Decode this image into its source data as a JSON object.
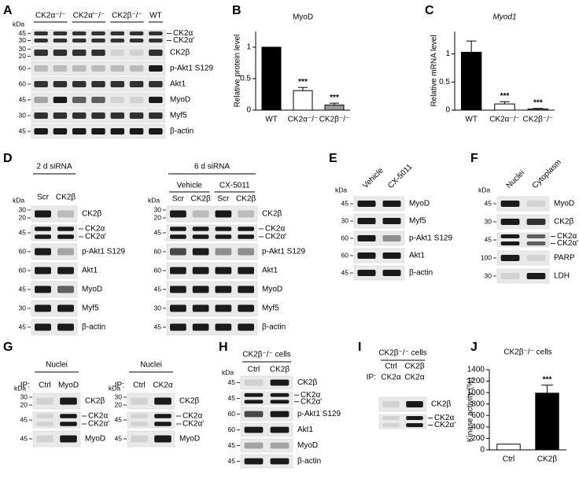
{
  "blots": {
    "A": {
      "letter": "A",
      "kda": "kDa",
      "groups": [
        "CK2α⁻/⁻",
        "CK2α'⁻/⁻",
        "CK2β⁻/⁻",
        "WT"
      ],
      "rows": [
        {
          "markers": [
            "45",
            "30"
          ],
          "names": [
            "CK2α",
            "CK2α'"
          ]
        },
        {
          "markers": [
            "30",
            "20"
          ],
          "names": [
            "CK2β"
          ]
        },
        {
          "markers": [
            "60"
          ],
          "names": [
            "p-Akt1 S129"
          ]
        },
        {
          "markers": [
            "60"
          ],
          "names": [
            "Akt1"
          ]
        },
        {
          "markers": [
            "45"
          ],
          "names": [
            "MyoD"
          ]
        },
        {
          "markers": [
            "30"
          ],
          "names": [
            "Myf5"
          ]
        },
        {
          "markers": [
            "45"
          ],
          "names": [
            "β-actin"
          ]
        }
      ]
    },
    "D_left": {
      "letter": "D",
      "title": "2 d siRNA",
      "kda": "kDa",
      "lanes": [
        "Scr",
        "CK2β"
      ],
      "rows": [
        {
          "markers": [
            "30",
            "20"
          ],
          "names": [
            "CK2β"
          ]
        },
        {
          "markers": [
            "45"
          ],
          "names": [
            "CK2α",
            "CK2α'"
          ]
        },
        {
          "markers": [
            "60"
          ],
          "names": [
            "p-Akt1 S129"
          ]
        },
        {
          "markers": [
            "60"
          ],
          "names": [
            "Akt1"
          ]
        },
        {
          "markers": [
            "45"
          ],
          "names": [
            "MyoD"
          ]
        },
        {
          "markers": [
            "30"
          ],
          "names": [
            "Myf5"
          ]
        },
        {
          "markers": [
            "45"
          ],
          "names": [
            "β-actin"
          ]
        }
      ]
    },
    "D_right": {
      "title": "6 d siRNA",
      "kda": "kDa",
      "groups": [
        "Vehicle",
        "CX-5011"
      ],
      "lanes": [
        "Scr",
        "CK2β",
        "Scr",
        "CK2β"
      ],
      "rows": [
        {
          "markers": [
            "30",
            "20"
          ],
          "names": [
            "CK2β"
          ]
        },
        {
          "markers": [
            "45"
          ],
          "names": [
            "CK2α",
            "CK2α'"
          ]
        },
        {
          "markers": [
            "60"
          ],
          "names": [
            "p-Akt1 S129"
          ]
        },
        {
          "markers": [
            "60"
          ],
          "names": [
            "Akt1"
          ]
        },
        {
          "markers": [
            "45"
          ],
          "names": [
            "MyoD"
          ]
        },
        {
          "markers": [
            "30"
          ],
          "names": [
            "Myf5"
          ]
        },
        {
          "markers": [
            "45"
          ],
          "names": [
            "β-actin"
          ]
        }
      ]
    },
    "E": {
      "letter": "E",
      "kda": "kDa",
      "lanes": [
        "Vehicle",
        "CX-5011"
      ],
      "rows": [
        {
          "markers": [
            "45"
          ],
          "names": [
            "MyoD"
          ]
        },
        {
          "markers": [
            "30"
          ],
          "names": [
            "Myf5"
          ]
        },
        {
          "markers": [
            "60"
          ],
          "names": [
            "p-Akt1 S129"
          ]
        },
        {
          "markers": [
            "60"
          ],
          "names": [
            "Akt1"
          ]
        },
        {
          "markers": [
            "45"
          ],
          "names": [
            "β-actin"
          ]
        }
      ]
    },
    "F": {
      "letter": "F",
      "kda": "kDa",
      "lanes": [
        "Nuclei",
        "Cytoplasm"
      ],
      "rows": [
        {
          "markers": [
            "45"
          ],
          "names": [
            "MyoD"
          ]
        },
        {
          "markers": [
            "30"
          ],
          "names": [
            "CK2β"
          ]
        },
        {
          "markers": [
            "45"
          ],
          "names": [
            "CK2α",
            "CK2α'"
          ]
        },
        {
          "markers": [
            "100"
          ],
          "names": [
            "PARP"
          ]
        },
        {
          "markers": [
            "30"
          ],
          "names": [
            "LDH"
          ]
        }
      ]
    },
    "G_left": {
      "letter": "G",
      "title": "Nuclei",
      "kda": "kDa",
      "ip": "IP:",
      "lanes": [
        "Ctrl",
        "MyoD"
      ],
      "rows": [
        {
          "markers": [
            "30",
            "20"
          ],
          "names": [
            "CK2β"
          ]
        },
        {
          "markers": [
            "45"
          ],
          "names": [
            "CK2α",
            "CK2α'"
          ]
        },
        {
          "markers": [
            "45"
          ],
          "names": [
            "MyoD"
          ]
        }
      ]
    },
    "G_right": {
      "title": "Nuclei",
      "kda": "kDa",
      "ip": "IP:",
      "lanes": [
        "Ctrl",
        "CK2α"
      ],
      "rows": [
        {
          "markers": [
            "30",
            "20"
          ],
          "names": [
            "CK2β"
          ]
        },
        {
          "markers": [
            "45"
          ],
          "names": [
            "CK2α",
            "CK2α'"
          ]
        },
        {
          "markers": [
            "45"
          ],
          "names": [
            "MyoD"
          ]
        }
      ]
    },
    "H": {
      "letter": "H",
      "title": "CK2β⁻/⁻ cells",
      "kda": "kDa",
      "lanes": [
        "Ctrl",
        "CK2β"
      ],
      "rows": [
        {
          "markers": [
            "45"
          ],
          "names": [
            "CK2β"
          ]
        },
        {
          "markers": [
            "45"
          ],
          "names": [
            "CK2α",
            "CK2α'"
          ]
        },
        {
          "markers": [
            "60"
          ],
          "names": [
            "p-Akt1 S129"
          ]
        },
        {
          "markers": [
            "60"
          ],
          "names": [
            "Akt1"
          ]
        },
        {
          "markers": [
            "45"
          ],
          "names": [
            "MyoD"
          ]
        },
        {
          "markers": [
            "45"
          ],
          "names": [
            "β-actin"
          ]
        }
      ]
    },
    "I": {
      "letter": "I",
      "title": "CK2β⁻/⁻ cells",
      "ip": "IP:",
      "lanes": [
        "Ctrl",
        "CK2β"
      ],
      "ip_lanes": [
        "CK2α",
        "CK2α"
      ],
      "rows": [
        {
          "markers": [],
          "names": [
            "CK2β"
          ]
        },
        {
          "markers": [],
          "names": [
            "CK2α",
            "CK2α'"
          ]
        }
      ]
    }
  },
  "chart_data": [
    {
      "type": "bar",
      "panel": "B",
      "title": "MyoD",
      "ylabel": "Relative protein level",
      "categories": [
        "WT",
        "CK2α⁻/⁻",
        "CK2β⁻/⁻"
      ],
      "values": [
        1,
        0.31,
        0.08
      ],
      "errors": [
        null,
        0.05,
        0.03
      ],
      "significance": [
        null,
        "***",
        "***"
      ],
      "colors": [
        "#000000",
        "#ffffff",
        "#999999"
      ],
      "ylim": [
        0,
        1.25
      ],
      "yticks": [
        0,
        0.5,
        1
      ]
    },
    {
      "type": "bar",
      "panel": "C",
      "title": "Myod1",
      "title_italic": true,
      "ylabel": "Relative mRNA level",
      "categories": [
        "WT",
        "CK2α⁻/⁻",
        "CK2β⁻/⁻"
      ],
      "values": [
        1.03,
        0.11,
        0.02
      ],
      "errors": [
        0.2,
        0.04,
        0.01
      ],
      "significance": [
        null,
        "***",
        "***"
      ],
      "colors": [
        "#000000",
        "#ffffff",
        "#999999"
      ],
      "ylim": [
        0,
        1.4
      ],
      "yticks": [
        0,
        0.5,
        1
      ]
    },
    {
      "type": "bar",
      "panel": "J",
      "title": "CK2β⁻/⁻ cells",
      "ylabel": "Kinase activity (%)",
      "categories": [
        "Ctrl",
        "CK2β"
      ],
      "values": [
        100,
        990
      ],
      "errors": [
        null,
        140
      ],
      "significance": [
        null,
        "***"
      ],
      "colors": [
        "#ffffff",
        "#000000"
      ],
      "ylim": [
        0,
        1400
      ],
      "yticks": [
        0,
        200,
        400,
        600,
        800,
        1000,
        1200,
        1400
      ]
    }
  ]
}
